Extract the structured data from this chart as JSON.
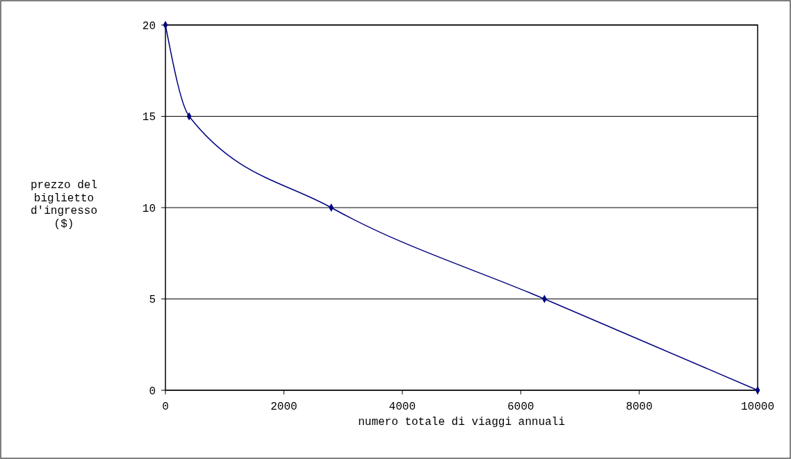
{
  "chart_data": {
    "type": "line",
    "xlabel": "numero totale di viaggi annuali",
    "ylabel": "prezzo del biglietto d'ingresso ($)",
    "x": [
      0,
      400,
      2800,
      6400,
      10000
    ],
    "series": [
      {
        "color": "#000080",
        "values": [
          20,
          15,
          10,
          5,
          0
        ]
      }
    ],
    "xlim": [
      0,
      10000
    ],
    "xticks": [
      0,
      2000,
      4000,
      6000,
      8000,
      10000
    ],
    "ylim": [
      0,
      20
    ],
    "yticks": [
      0,
      5,
      10,
      15,
      20
    ],
    "grid": "y",
    "marker": "diamond",
    "line_style": "solid"
  }
}
